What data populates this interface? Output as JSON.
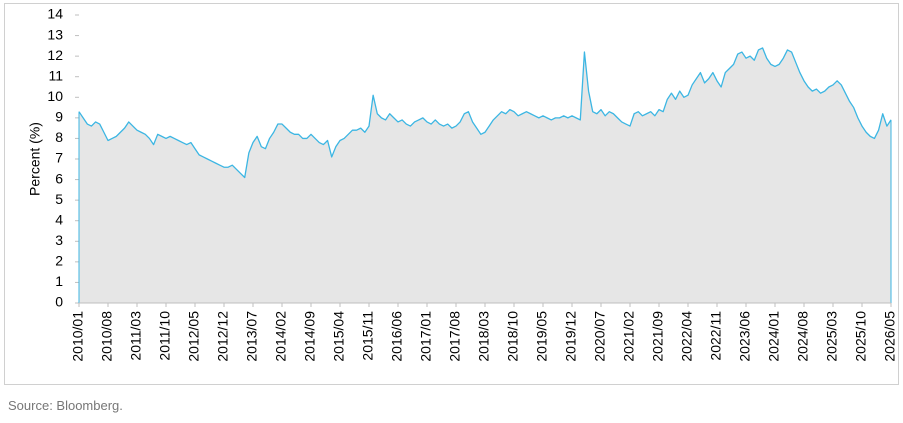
{
  "chart_data": {
    "type": "area",
    "y_label": "Percent (%)",
    "source": "Source: Bloomberg.",
    "color": "#3cb6e3",
    "fill_color": "#e6e6e6",
    "ylim": [
      0,
      14
    ],
    "yticks": [
      0,
      1,
      2,
      3,
      4,
      5,
      6,
      7,
      8,
      9,
      10,
      11,
      12,
      13,
      14
    ],
    "categories": [
      "2010/01",
      null,
      null,
      null,
      null,
      null,
      null,
      "2010/08",
      null,
      null,
      null,
      null,
      null,
      null,
      "2011/03",
      null,
      null,
      null,
      null,
      null,
      null,
      "2011/10",
      null,
      null,
      null,
      null,
      null,
      null,
      "2012/05",
      null,
      null,
      null,
      null,
      null,
      null,
      "2012/12",
      null,
      null,
      null,
      null,
      null,
      null,
      "2013/07",
      null,
      null,
      null,
      null,
      null,
      null,
      "2014/02",
      null,
      null,
      null,
      null,
      null,
      null,
      "2014/09",
      null,
      null,
      null,
      null,
      null,
      null,
      "2015/04",
      null,
      null,
      null,
      null,
      null,
      null,
      "2015/11",
      null,
      null,
      null,
      null,
      null,
      null,
      "2016/06",
      null,
      null,
      null,
      null,
      null,
      null,
      "2017/01",
      null,
      null,
      null,
      null,
      null,
      null,
      "2017/08",
      null,
      null,
      null,
      null,
      null,
      null,
      "2018/03",
      null,
      null,
      null,
      null,
      null,
      null,
      "2018/10",
      null,
      null,
      null,
      null,
      null,
      null,
      "2019/05",
      null,
      null,
      null,
      null,
      null,
      null,
      "2019/12",
      null,
      null,
      null,
      null,
      null,
      null,
      "2020/07",
      null,
      null,
      null,
      null,
      null,
      null,
      "2021/02",
      null,
      null,
      null,
      null,
      null,
      null,
      "2021/09",
      null,
      null,
      null,
      null,
      null,
      null,
      "2022/04",
      null,
      null,
      null,
      null,
      null,
      null,
      "2022/11",
      null,
      null,
      null,
      null,
      null,
      null,
      "2023/06",
      null,
      null,
      null,
      null,
      null,
      null,
      "2024/01",
      null,
      null,
      null,
      null,
      null,
      null,
      "2024/08",
      null,
      null,
      null,
      null,
      null,
      null,
      "2025/03",
      null,
      null,
      null,
      null,
      null,
      null,
      "2025/10",
      null,
      null,
      null,
      null,
      null,
      null,
      "2026/05"
    ],
    "values": [
      9.3,
      9.0,
      8.7,
      8.6,
      8.8,
      8.7,
      8.3,
      7.9,
      8.0,
      8.1,
      8.3,
      8.5,
      8.8,
      8.6,
      8.4,
      8.3,
      8.2,
      8.0,
      7.7,
      8.2,
      8.1,
      8.0,
      8.1,
      8.0,
      7.9,
      7.8,
      7.7,
      7.8,
      7.5,
      7.2,
      7.1,
      7.0,
      6.9,
      6.8,
      6.7,
      6.6,
      6.6,
      6.7,
      6.5,
      6.3,
      6.1,
      7.3,
      7.8,
      8.1,
      7.6,
      7.5,
      8.0,
      8.3,
      8.7,
      8.7,
      8.5,
      8.3,
      8.2,
      8.2,
      8.0,
      8.0,
      8.2,
      8.0,
      7.8,
      7.7,
      7.9,
      7.1,
      7.6,
      7.9,
      8.0,
      8.2,
      8.4,
      8.4,
      8.5,
      8.3,
      8.6,
      10.1,
      9.2,
      9.0,
      8.9,
      9.2,
      9.0,
      8.8,
      8.9,
      8.7,
      8.6,
      8.8,
      8.9,
      9.0,
      8.8,
      8.7,
      8.9,
      8.7,
      8.6,
      8.7,
      8.5,
      8.6,
      8.8,
      9.2,
      9.3,
      8.8,
      8.5,
      8.2,
      8.3,
      8.6,
      8.9,
      9.1,
      9.3,
      9.2,
      9.4,
      9.3,
      9.1,
      9.2,
      9.3,
      9.2,
      9.1,
      9.0,
      9.1,
      9.0,
      8.9,
      9.0,
      9.0,
      9.1,
      9.0,
      9.1,
      9.0,
      8.9,
      12.2,
      10.3,
      9.3,
      9.2,
      9.4,
      9.1,
      9.3,
      9.2,
      9.0,
      8.8,
      8.7,
      8.6,
      9.2,
      9.3,
      9.1,
      9.2,
      9.3,
      9.1,
      9.4,
      9.3,
      9.9,
      10.2,
      9.9,
      10.3,
      10.0,
      10.1,
      10.6,
      10.9,
      11.2,
      10.7,
      10.9,
      11.2,
      10.8,
      10.5,
      11.2,
      11.4,
      11.6,
      12.1,
      12.2,
      11.9,
      12.0,
      11.8,
      12.3,
      12.4,
      11.9,
      11.6,
      11.5,
      11.6,
      11.9,
      12.3,
      12.2,
      11.7,
      11.2,
      10.8,
      10.5,
      10.3,
      10.4,
      10.2,
      10.3,
      10.5,
      10.6,
      10.8,
      10.6,
      10.2,
      9.8,
      9.5,
      9.0,
      8.6,
      8.3,
      8.1,
      8.0,
      8.4,
      9.2,
      8.6,
      8.9
    ]
  }
}
